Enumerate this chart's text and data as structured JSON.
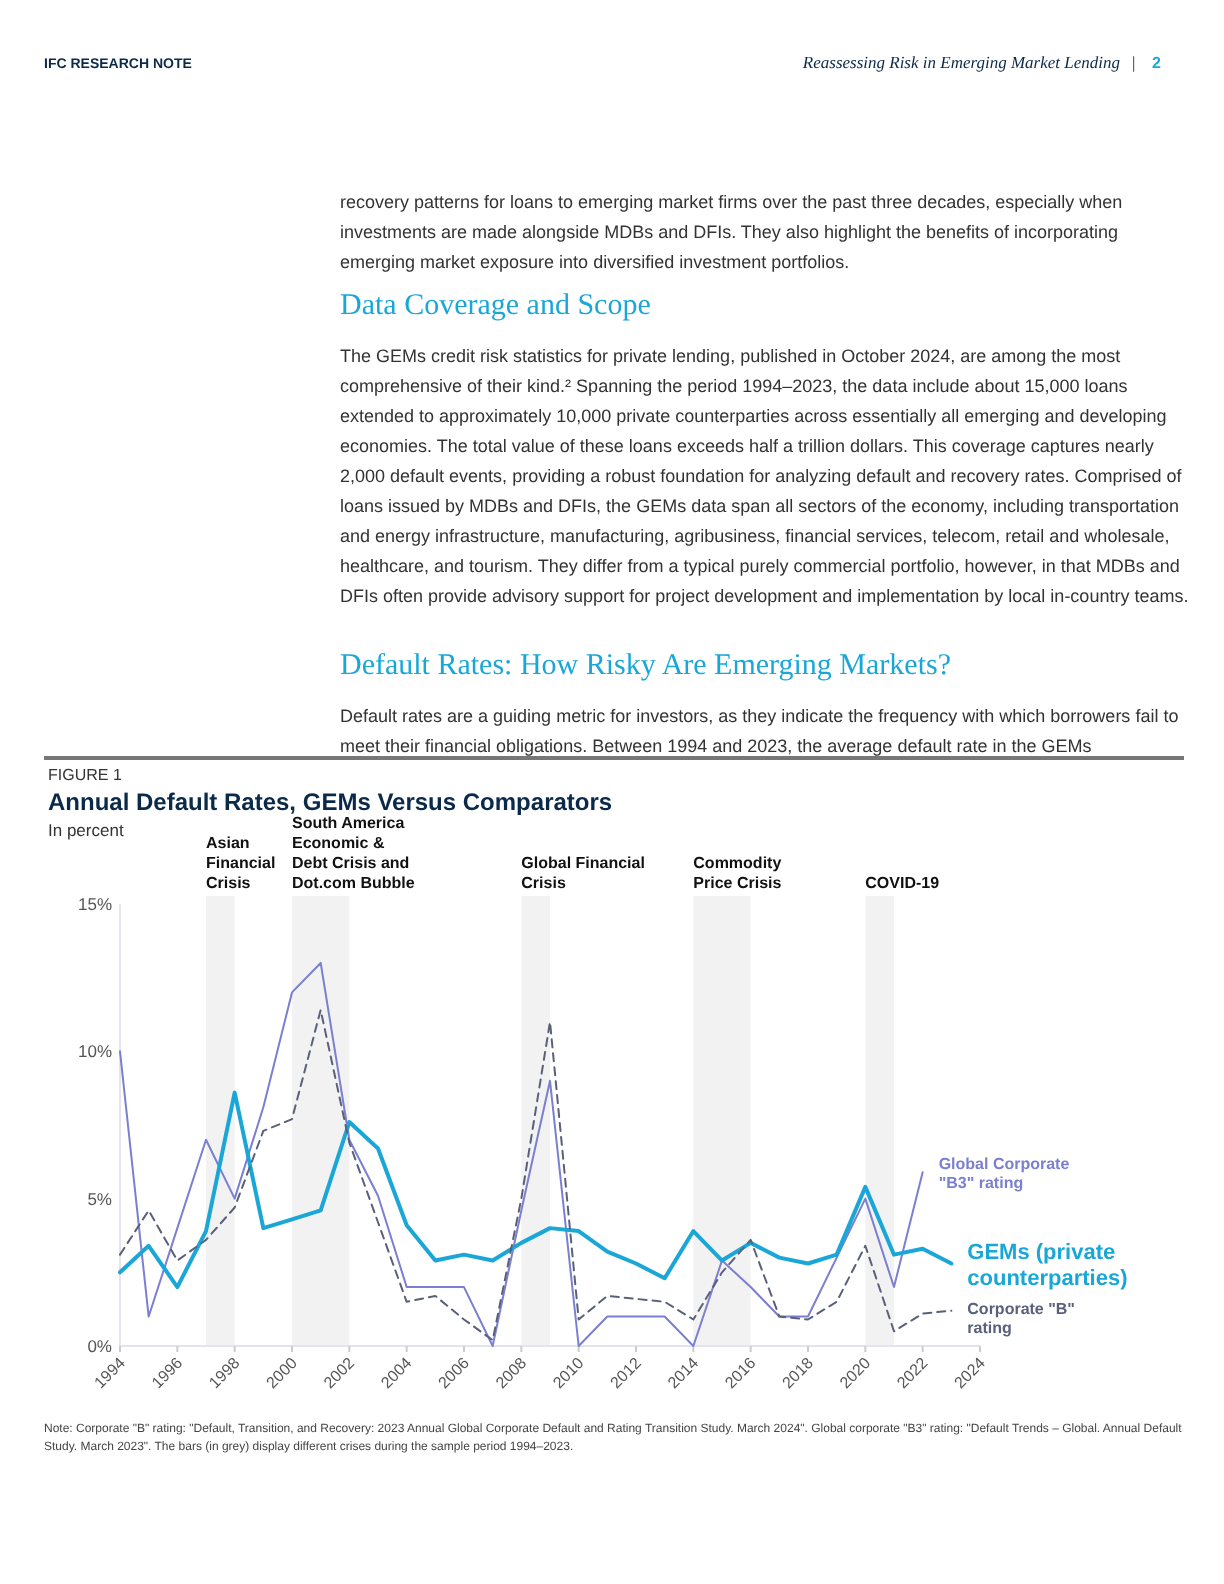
{
  "chart_data": {
    "type": "line",
    "title": "Annual Default Rates, GEMs Versus Comparators",
    "subtitle": "In percent",
    "x": [
      1994,
      1995,
      1996,
      1997,
      1998,
      1999,
      2000,
      2001,
      2002,
      2003,
      2004,
      2005,
      2006,
      2007,
      2008,
      2009,
      2010,
      2011,
      2012,
      2013,
      2014,
      2015,
      2016,
      2017,
      2018,
      2019,
      2020,
      2021,
      2022,
      2023
    ],
    "xlim": [
      1994,
      2024
    ],
    "xticks": [
      1994,
      1996,
      1998,
      2000,
      2002,
      2004,
      2006,
      2008,
      2010,
      2012,
      2014,
      2016,
      2018,
      2020,
      2022,
      2024
    ],
    "ylim": [
      0,
      15
    ],
    "yticks": [
      {
        "value": 0,
        "label": "0%"
      },
      {
        "value": 5,
        "label": "5%"
      },
      {
        "value": 10,
        "label": "10%"
      },
      {
        "value": 15,
        "label": "15%"
      }
    ],
    "legend": "right",
    "series": [
      {
        "name": "Global Corporate \"B3\" rating",
        "color": "#7b7fd0",
        "line_style": "solid",
        "values": [
          10.0,
          1.0,
          4.0,
          7.0,
          5.0,
          8.1,
          12.0,
          13.0,
          7.0,
          5.1,
          2.0,
          2.0,
          2.0,
          0.0,
          4.6,
          9.0,
          0.0,
          1.0,
          1.0,
          1.0,
          0.0,
          2.9,
          2.0,
          1.0,
          1.0,
          3.0,
          5.0,
          2.0,
          5.9,
          null
        ]
      },
      {
        "name": "GEMs (private counterparties)",
        "color": "#1aa7d8",
        "line_style": "solid",
        "values": [
          2.5,
          3.4,
          2.0,
          3.9,
          8.6,
          4.0,
          4.3,
          4.6,
          7.6,
          6.7,
          4.1,
          2.9,
          3.1,
          2.9,
          3.5,
          4.0,
          3.9,
          3.2,
          2.8,
          2.3,
          3.9,
          2.9,
          3.5,
          3.0,
          2.8,
          3.1,
          5.4,
          3.1,
          3.3,
          2.8
        ]
      },
      {
        "name": "Corporate \"B\" rating",
        "color": "#5a607a",
        "line_style": "dashed",
        "values": [
          3.1,
          4.6,
          2.9,
          3.6,
          4.7,
          7.3,
          7.7,
          11.4,
          6.9,
          4.2,
          1.5,
          1.7,
          0.9,
          0.2,
          5.0,
          11.0,
          0.9,
          1.7,
          1.6,
          1.5,
          0.9,
          2.5,
          3.6,
          1.0,
          0.9,
          1.5,
          3.4,
          0.5,
          1.1,
          1.2
        ]
      }
    ],
    "bands": [
      {
        "axis": "x",
        "from": 1997,
        "to": 1998,
        "label": "Asian Financial Crisis",
        "color": "#f2f2f2"
      },
      {
        "axis": "x",
        "from": 2000,
        "to": 2002,
        "label": "South America Economic & Debt Crisis and Dot.com Bubble",
        "color": "#f2f2f2"
      },
      {
        "axis": "x",
        "from": 2008,
        "to": 2009,
        "label": "Global Financial Crisis",
        "color": "#f2f2f2"
      },
      {
        "axis": "x",
        "from": 2014,
        "to": 2016,
        "label": "Commodity Price Crisis",
        "color": "#f2f2f2"
      },
      {
        "axis": "x",
        "from": 2020,
        "to": 2021,
        "label": "COVID-19",
        "color": "#f2f2f2"
      }
    ],
    "annotations": [
      "IFC RESEARCH NOTE",
      "Reassessing Risk in Emerging Market Lending",
      "2",
      "recovery patterns for loans to emerging market firms over the past three decades, especially when investments are made alongside MDBs and DFIs. They also highlight the benefits of incorporating emerging market exposure into diversified investment portfolios.",
      "Data Coverage and Scope",
      "The GEMs credit risk statistics for private lending, published in October 2024, are among the most comprehensive of their kind.² Spanning the period 1994–2023, the data include about 15,000 loans extended to approximately 10,000 private counterparties across essentially all emerging and developing economies. The total value of these loans exceeds half a trillion dollars. This coverage captures nearly 2,000 default events, providing a robust foundation for analyzing default and recovery rates. Comprised of loans issued by MDBs and DFIs, the GEMs data span all sectors of the economy, including transportation and energy infrastructure, manufacturing, agribusiness, financial services, telecom, retail and wholesale, healthcare, and tourism. They differ from a typical purely commercial portfolio, however, in that MDBs and DFIs often provide advisory support for project development and implementation by local in-country teams.",
      "Default Rates: How Risky Are Emerging Markets?",
      "Default rates are a guiding metric for investors, as they indicate the frequency with which borrowers fail to meet their financial obligations. Between 1994 and 2023, the average default rate in the GEMs",
      "FIGURE 1",
      "Note: Corporate \"B\" rating: \"Default, Transition, and Recovery: 2023 Annual Global Corporate Default and Rating Transition Study. March 2024\". Global corporate \"B3\" rating: \"Default Trends – Global. Annual Default Study. March 2023\". The bars (in grey) display different crises during the sample period 1994–2023.",
      "|"
    ]
  }
}
